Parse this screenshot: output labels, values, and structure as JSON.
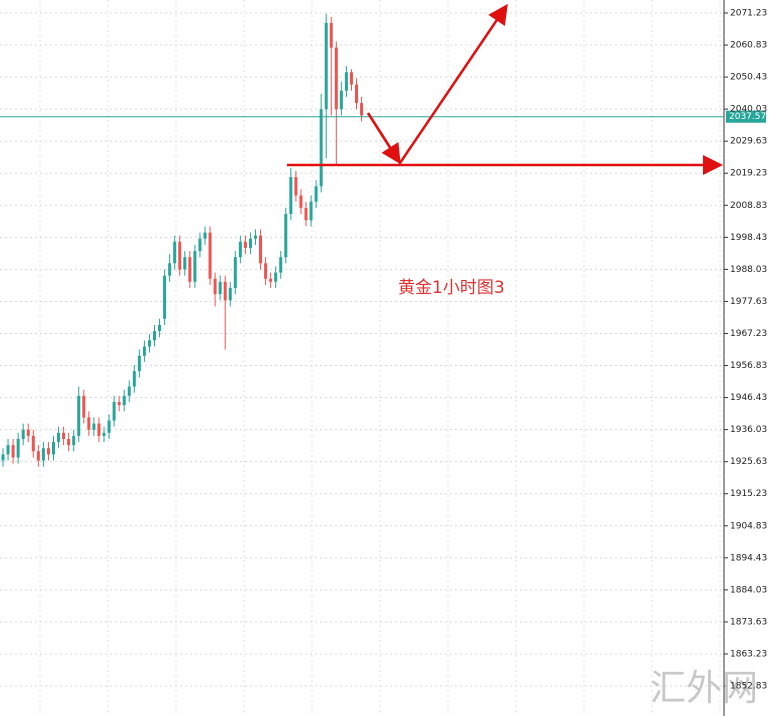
{
  "chart_data": {
    "type": "candlestick",
    "open": [
      1926,
      1928,
      1931,
      1927,
      1933,
      1936,
      1934,
      1929,
      1926,
      1930,
      1928,
      1932,
      1935,
      1933,
      1931,
      1934,
      1947,
      1940,
      1936,
      1938,
      1934,
      1935,
      1939,
      1945,
      1944,
      1947,
      1950,
      1955,
      1960,
      1963,
      1965,
      1968,
      1972,
      1986,
      1990,
      1997,
      1988,
      1992,
      1984,
      1994,
      1998,
      2000,
      1985,
      1980,
      1984,
      1978,
      1982,
      1992,
      1997,
      1995,
      1998,
      1999,
      1990,
      1985,
      1984,
      1987,
      1992,
      2006,
      2018,
      2012,
      2008,
      2004,
      2010,
      2015,
      2040,
      2068,
      2060,
      2040,
      2046,
      2052,
      2048,
      2042
    ],
    "high": [
      1930,
      1933,
      1933,
      1935,
      1938,
      1938,
      1936,
      1931,
      1932,
      1932,
      1934,
      1937,
      1937,
      1935,
      1936,
      1950,
      1949,
      1942,
      1940,
      1940,
      1937,
      1941,
      1947,
      1947,
      1949,
      1952,
      1957,
      1962,
      1965,
      1967,
      1970,
      1972,
      1988,
      1993,
      1999,
      1999,
      1994,
      1994,
      1996,
      2000,
      2002,
      2002,
      1987,
      1986,
      1986,
      1984,
      1994,
      1999,
      1999,
      2000,
      2001,
      2001,
      1992,
      1987,
      1989,
      1994,
      2008,
      2021,
      2020,
      2014,
      2010,
      2012,
      2017,
      2045,
      2071,
      2070,
      2062,
      2049,
      2054,
      2053,
      2050,
      2044
    ],
    "low": [
      1924,
      1926,
      1925,
      1925,
      1931,
      1932,
      1927,
      1924,
      1924,
      1926,
      1926,
      1930,
      1931,
      1929,
      1929,
      1932,
      1938,
      1934,
      1934,
      1932,
      1932,
      1933,
      1937,
      1942,
      1942,
      1945,
      1948,
      1953,
      1958,
      1961,
      1963,
      1966,
      1970,
      1984,
      1988,
      1986,
      1986,
      1982,
      1982,
      1992,
      1996,
      1983,
      1976,
      1978,
      1962,
      1976,
      1980,
      1990,
      1993,
      1993,
      1996,
      1988,
      1983,
      1982,
      1982,
      1985,
      1990,
      2004,
      2010,
      2006,
      2002,
      2002,
      2008,
      2013,
      2024,
      2038,
      2022,
      2038,
      2044,
      2046,
      2040,
      2036
    ],
    "close": [
      1928,
      1931,
      1927,
      1933,
      1936,
      1934,
      1929,
      1926,
      1930,
      1928,
      1932,
      1935,
      1933,
      1931,
      1934,
      1947,
      1940,
      1936,
      1938,
      1934,
      1935,
      1939,
      1945,
      1944,
      1947,
      1950,
      1955,
      1960,
      1963,
      1965,
      1968,
      1970,
      1986,
      1990,
      1997,
      1988,
      1992,
      1984,
      1994,
      1998,
      2000,
      1985,
      1980,
      1984,
      1978,
      1982,
      1992,
      1997,
      1995,
      1998,
      1999,
      1990,
      1985,
      1984,
      1987,
      1992,
      2006,
      2018,
      2012,
      2008,
      2004,
      2010,
      2015,
      2040,
      2068,
      2060,
      2040,
      2046,
      2052,
      2048,
      2042,
      2038
    ],
    "up_color": "#26a69a",
    "down_color": "#ef5350",
    "ylim": [
      1843.1,
      2075.45
    ],
    "yticks": [
      2071.23,
      2060.83,
      2050.43,
      2040.03,
      2029.63,
      2019.23,
      2008.83,
      1998.43,
      1988.03,
      1977.63,
      1967.23,
      1956.83,
      1946.43,
      1936.03,
      1925.63,
      1915.23,
      1904.83,
      1894.43,
      1884.03,
      1873.63,
      1863.23,
      1852.83
    ],
    "grid": true,
    "current_price": 2037.57,
    "support_level": 2021.9,
    "annotation": "黄金1小时图3",
    "watermark": "汇外网"
  }
}
